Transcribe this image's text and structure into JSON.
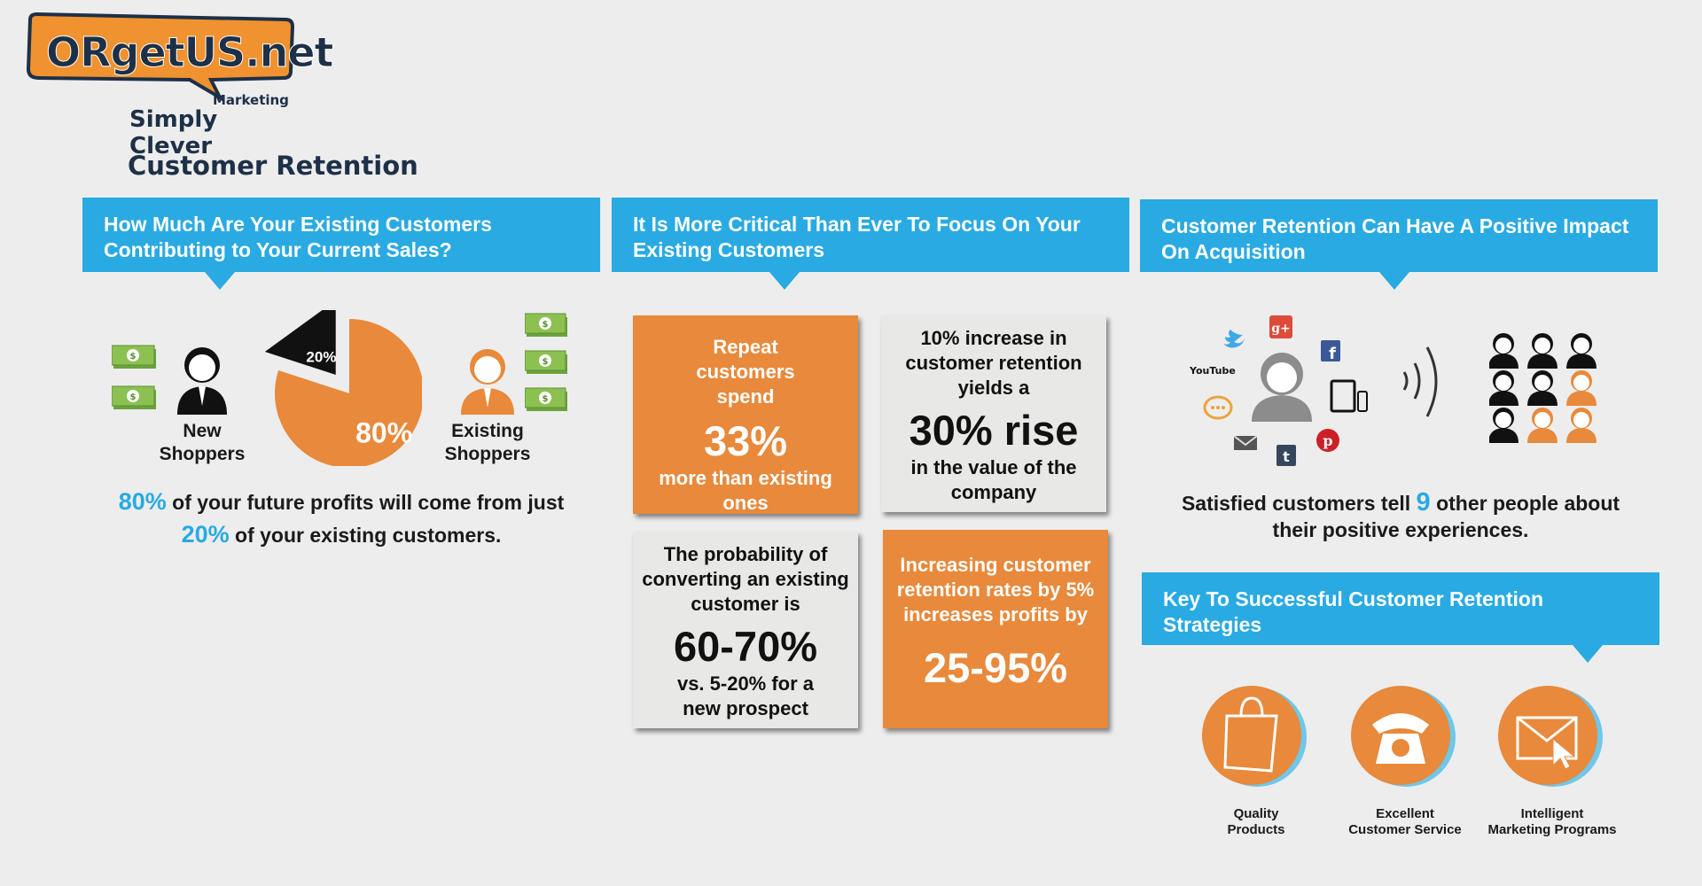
{
  "brand": {
    "logo_text": "ORgetUS.net",
    "tagline_small": "Marketing",
    "tagline": "Simply Clever"
  },
  "page_title": "Customer Retention",
  "colors": {
    "blue": "#29aae2",
    "orange": "#e8893b",
    "navy": "#1d3047",
    "background": "#ededed"
  },
  "section1": {
    "header": "How Much Are Your Existing Customers Contributing to Your Current Sales?",
    "new_label_line1": "New",
    "new_label_line2": "Shoppers",
    "existing_label_line1": "Existing",
    "existing_label_line2": "Shoppers",
    "pie_small_label": "20%",
    "pie_big_label": "80%",
    "stat_line1_value": "80%",
    "stat_line1_text": "of your future profits will come from just",
    "stat_line2_value": "20%",
    "stat_line2_text": "of your existing customers."
  },
  "chart_data": {
    "type": "pie",
    "labels": [
      "20%",
      "80%"
    ],
    "values": [
      20,
      80
    ],
    "colors": [
      "#111111",
      "#e8893b"
    ]
  },
  "section2": {
    "header": "It Is More Critical Than Ever To Focus On Your Existing Customers",
    "box1": {
      "top": "Repeat customers spend",
      "value": "33%",
      "bottom": "more than existing ones"
    },
    "box2": {
      "top": "10% increase in customer retention yields a",
      "value": "30% rise",
      "bottom": "in the value of the company"
    },
    "box3": {
      "top": "The probability of converting an existing customer is",
      "value": "60-70%",
      "bottom": "vs. 5-20% for a new prospect"
    },
    "box4": {
      "top": "Increasing customer retention rates by 5% increases profits by",
      "value": "25-95%"
    }
  },
  "section3": {
    "header": "Customer Retention Can Have A Positive Impact On Acquisition",
    "social_icons": [
      "twitter-icon",
      "google-plus-icon",
      "youtube-icon",
      "facebook-icon",
      "chat-icon",
      "mail-icon",
      "tumblr-icon",
      "pinterest-icon",
      "tablet-icon"
    ],
    "youtube_text": "YouTube",
    "stat_prefix": "Satisfied customers tell",
    "stat_value": "9",
    "stat_suffix_line1": "other people about",
    "stat_line2": "their positive experiences."
  },
  "section4": {
    "header": "Key To Successful Customer Retention Strategies",
    "items": [
      {
        "icon": "shopping-bag-icon",
        "line1": "Quality",
        "line2": "Products"
      },
      {
        "icon": "telephone-icon",
        "line1": "Excellent",
        "line2": "Customer Service"
      },
      {
        "icon": "envelope-cursor-icon",
        "line1": "Intelligent",
        "line2": "Marketing Programs"
      }
    ]
  }
}
